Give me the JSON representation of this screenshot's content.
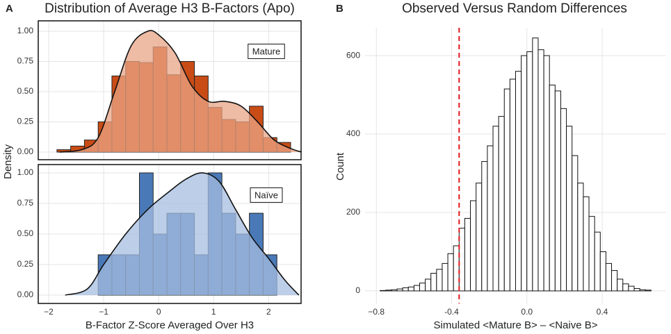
{
  "chart_data": [
    {
      "type": "histogram",
      "panel": "A",
      "title": "Distribution of Average H3 B-Factors (Apo)",
      "ylabel": "Density",
      "label": "Mature",
      "bins": [
        -1.85,
        -1.6,
        -1.35,
        -1.1,
        -0.85,
        -0.6,
        -0.35,
        -0.1,
        0.15,
        0.4,
        0.65,
        0.9,
        1.15,
        1.4,
        1.65,
        1.9,
        2.15,
        2.4
      ],
      "values": [
        0.02,
        0.05,
        0.1,
        0.25,
        0.63,
        0.75,
        0.74,
        0.87,
        0.64,
        0.75,
        0.63,
        0.37,
        0.27,
        0.25,
        0.38,
        0.12,
        0.08
      ],
      "color": "#c94c16",
      "edge_color": "#222222",
      "density": {
        "x": [
          -1.8,
          -1.4,
          -1.1,
          -0.8,
          -0.5,
          -0.2,
          0,
          0.3,
          0.6,
          0.9,
          1.2,
          1.5,
          1.8,
          2.1,
          2.4,
          2.6
        ],
        "values": [
          0,
          0.02,
          0.12,
          0.5,
          0.88,
          1.0,
          0.97,
          0.82,
          0.55,
          0.42,
          0.42,
          0.38,
          0.25,
          0.1,
          0.03,
          0
        ],
        "color": "#e8a486"
      },
      "xlim": [
        -2.19,
        2.59
      ],
      "ylim": [
        -0.063,
        1.086
      ],
      "xticks": [
        {
          "value": -2,
          "label": "−2"
        },
        {
          "value": -1,
          "label": "−1"
        },
        0,
        1,
        2
      ],
      "yticks": [
        {
          "value": 0,
          "label": "0.00"
        },
        {
          "value": 0.25,
          "label": "0.25"
        },
        {
          "value": 0.5,
          "label": "0.50"
        },
        {
          "value": 0.75,
          "label": "0.75"
        },
        {
          "value": 1,
          "label": "1.00"
        }
      ],
      "grid": true,
      "border": true
    },
    {
      "type": "histogram",
      "label": "Naïve",
      "xlabel": "B-Factor Z-Score Averaged Over H3",
      "bins": [
        -1.1,
        -0.85,
        -0.6,
        -0.35,
        -0.1,
        0.15,
        0.4,
        0.65,
        0.9,
        1.15,
        1.4,
        1.65,
        1.9,
        2.15
      ],
      "values": [
        0.33,
        0.33,
        0.33,
        1.0,
        0.5,
        0.67,
        0.67,
        0.33,
        1.0,
        0.67,
        0.5,
        0.67,
        0.33
      ],
      "color": "#4a79b8",
      "edge_color": "#222222",
      "density": {
        "x": [
          -1.7,
          -1.3,
          -1,
          -0.6,
          -0.2,
          0.2,
          0.5,
          0.8,
          1.1,
          1.4,
          1.7,
          2.0,
          2.3,
          2.55
        ],
        "values": [
          0,
          0.05,
          0.25,
          0.5,
          0.7,
          0.85,
          0.95,
          1.0,
          0.93,
          0.7,
          0.47,
          0.3,
          0.12,
          0
        ],
        "color": "#a5bee0"
      },
      "xlim": [
        -2.19,
        2.59
      ],
      "ylim": [
        -0.068,
        1.068
      ],
      "xticks": [
        {
          "value": -2,
          "label": "−2"
        },
        {
          "value": -1,
          "label": "−1"
        },
        0,
        1,
        2
      ],
      "yticks": [
        {
          "value": 0,
          "label": "0.00"
        },
        {
          "value": 0.25,
          "label": "0.25"
        },
        {
          "value": 0.5,
          "label": "0.50"
        },
        {
          "value": 0.75,
          "label": "0.75"
        },
        {
          "value": 1,
          "label": "1.00"
        }
      ],
      "grid": true,
      "border": true
    },
    {
      "type": "histogram",
      "panel": "B",
      "title": "Observed Versus Random Differences",
      "ylabel": "Count",
      "xlabel": "Simulated <Mature B> – <Naive B>",
      "bins": [
        -0.78,
        -0.75,
        -0.72,
        -0.69,
        -0.66,
        -0.63,
        -0.6,
        -0.57,
        -0.54,
        -0.51,
        -0.48,
        -0.45,
        -0.42,
        -0.39,
        -0.36,
        -0.33,
        -0.3,
        -0.27,
        -0.24,
        -0.21,
        -0.18,
        -0.15,
        -0.12,
        -0.09,
        -0.06,
        -0.03,
        0,
        0.03,
        0.06,
        0.09,
        0.12,
        0.15,
        0.18,
        0.21,
        0.24,
        0.27,
        0.3,
        0.33,
        0.36,
        0.39,
        0.42,
        0.45,
        0.48,
        0.51,
        0.54,
        0.57,
        0.6,
        0.63,
        0.66
      ],
      "values": [
        1,
        2,
        3,
        5,
        8,
        10,
        14,
        20,
        30,
        45,
        55,
        70,
        95,
        115,
        160,
        185,
        230,
        275,
        330,
        370,
        420,
        445,
        515,
        540,
        560,
        600,
        610,
        645,
        615,
        600,
        525,
        510,
        465,
        420,
        345,
        275,
        240,
        190,
        150,
        100,
        70,
        52,
        30,
        18,
        12,
        6,
        3,
        2
      ],
      "color": "#ffffff",
      "edge_color": "#111111",
      "vline": {
        "value": -0.36,
        "color": "#e0191c",
        "style": "dashed"
      },
      "xlim": [
        -0.86,
        0.74
      ],
      "ylim": [
        -32,
        671
      ],
      "xticks": [
        {
          "value": -0.8,
          "label": "−0.8"
        },
        -0.4,
        {
          "value": 0,
          "label": "0.0"
        },
        0.4
      ],
      "yticks": [
        0,
        200,
        400,
        600
      ],
      "grid": true,
      "border": false
    }
  ]
}
